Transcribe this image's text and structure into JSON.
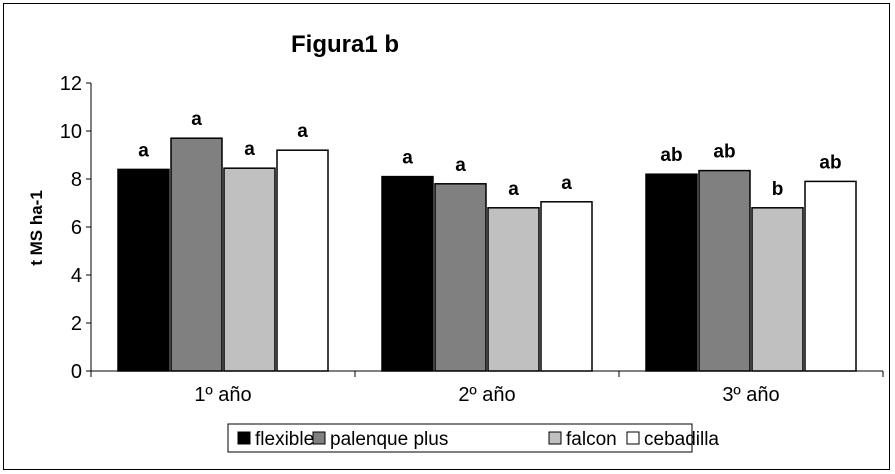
{
  "chart_data": {
    "type": "bar",
    "title": "Figura1 b",
    "ylabel": "t MS ha-1",
    "xlabel": "",
    "ylim": [
      0,
      12
    ],
    "yticks": [
      "0",
      "2",
      "4",
      "6",
      "8",
      "10",
      "12"
    ],
    "categories": [
      "1º año",
      "2º año",
      "3º año"
    ],
    "grid": false,
    "legend_position": "bottom",
    "series": [
      {
        "name": "flexible",
        "color": "#000000",
        "values": [
          8.4,
          8.1,
          8.2
        ],
        "labels": [
          "a",
          "a",
          "ab"
        ]
      },
      {
        "name": "palenque plus",
        "color": "#808080",
        "values": [
          9.7,
          7.8,
          8.35
        ],
        "labels": [
          "a",
          "a",
          "ab"
        ]
      },
      {
        "name": "falcon",
        "color": "#c0c0c0",
        "values": [
          8.45,
          6.8,
          6.8
        ],
        "labels": [
          "a",
          "a",
          "b"
        ]
      },
      {
        "name": "cebadilla",
        "color": "#ffffff",
        "values": [
          9.2,
          7.05,
          7.9
        ],
        "labels": [
          "a",
          "a",
          "ab"
        ]
      }
    ]
  }
}
